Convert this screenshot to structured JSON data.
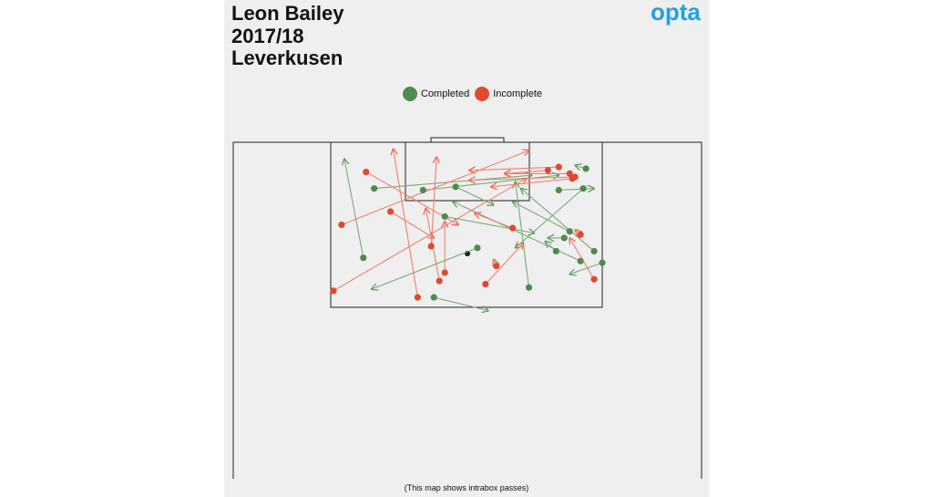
{
  "title": {
    "line1": "Leon Bailey",
    "line2": "2017/18",
    "line3": "Leverkusen"
  },
  "brand": {
    "logo_text": "opta",
    "logo_color": "#1fa2e3"
  },
  "legend": [
    {
      "label": "Completed",
      "color": "#4f8a4f"
    },
    {
      "label": "Incomplete",
      "color": "#e0492f"
    }
  ],
  "footer": "(This map shows intrabox passes)",
  "chart_data": {
    "type": "scatter",
    "description_kind": "pass map",
    "x_range": [
      0,
      100
    ],
    "y_range": [
      0,
      100
    ],
    "series": [
      {
        "name": "Completed",
        "color": "#4f8a4f",
        "passes": [
          {
            "start": [
              12,
              30
            ],
            "end": [
              5,
              90
            ]
          },
          {
            "start": [
              16,
              72
            ],
            "end": [
              74,
              80
            ]
          },
          {
            "start": [
              34,
              71
            ],
            "end": [
              84,
              80
            ]
          },
          {
            "start": [
              46,
              73
            ],
            "end": [
              60,
              62
            ]
          },
          {
            "start": [
              54,
              36
            ],
            "end": [
              15,
              11
            ]
          },
          {
            "start": [
              42,
              55
            ],
            "end": [
              75,
              45
            ]
          },
          {
            "start": [
              38,
              6
            ],
            "end": [
              58,
              -2
            ]
          },
          {
            "start": [
              92,
              28
            ],
            "end": [
              45,
              64
            ]
          },
          {
            "start": [
              93,
              72
            ],
            "end": [
              68,
              36
            ]
          },
          {
            "start": [
              94,
              84
            ],
            "end": [
              90,
              86
            ]
          },
          {
            "start": [
              88,
              46
            ],
            "end": [
              67,
              64
            ]
          },
          {
            "start": [
              97,
              34
            ],
            "end": [
              70,
              72
            ]
          },
          {
            "start": [
              83,
              34
            ],
            "end": [
              79,
              40
            ]
          },
          {
            "start": [
              86,
              42
            ],
            "end": [
              80,
              42
            ]
          },
          {
            "start": [
              73,
              12
            ],
            "end": [
              68,
              76
            ]
          },
          {
            "start": [
              100,
              27
            ],
            "end": [
              88,
              20
            ]
          },
          {
            "start": [
              84,
              71
            ],
            "end": [
              97,
              72
            ]
          }
        ]
      },
      {
        "name": "Incomplete",
        "color": "#e0492f",
        "passes": [
          {
            "start": [
              1,
              10
            ],
            "end": [
              72,
              78
            ]
          },
          {
            "start": [
              4,
              50
            ],
            "end": [
              73,
              95
            ]
          },
          {
            "start": [
              13,
              82
            ],
            "end": [
              47,
              50
            ]
          },
          {
            "start": [
              22,
              58
            ],
            "end": [
              38,
              42
            ]
          },
          {
            "start": [
              32,
              6
            ],
            "end": [
              23,
              96
            ]
          },
          {
            "start": [
              37,
              37
            ],
            "end": [
              39,
              91
            ]
          },
          {
            "start": [
              40,
              16
            ],
            "end": [
              35,
              60
            ]
          },
          {
            "start": [
              42,
              21
            ],
            "end": [
              42,
              52
            ]
          },
          {
            "start": [
              57,
              14
            ],
            "end": [
              71,
              39
            ]
          },
          {
            "start": [
              67,
              48
            ],
            "end": [
              53,
              57
            ]
          },
          {
            "start": [
              97,
              17
            ],
            "end": [
              88,
              42
            ]
          },
          {
            "start": [
              61,
              25
            ],
            "end": [
              60,
              29
            ]
          },
          {
            "start": [
              84,
              85
            ],
            "end": [
              51,
              83
            ]
          },
          {
            "start": [
              88,
              81
            ],
            "end": [
              64,
              81
            ]
          },
          {
            "start": [
              80,
              83
            ],
            "end": [
              64,
              81
            ]
          },
          {
            "start": [
              89,
              78
            ],
            "end": [
              59,
              73
            ]
          },
          {
            "start": [
              90,
              79
            ],
            "end": [
              51,
              77
            ]
          },
          {
            "start": [
              92,
              44
            ],
            "end": [
              90,
              47
            ]
          }
        ]
      }
    ],
    "ball": {
      "position": [
        50,
        31
      ]
    }
  }
}
